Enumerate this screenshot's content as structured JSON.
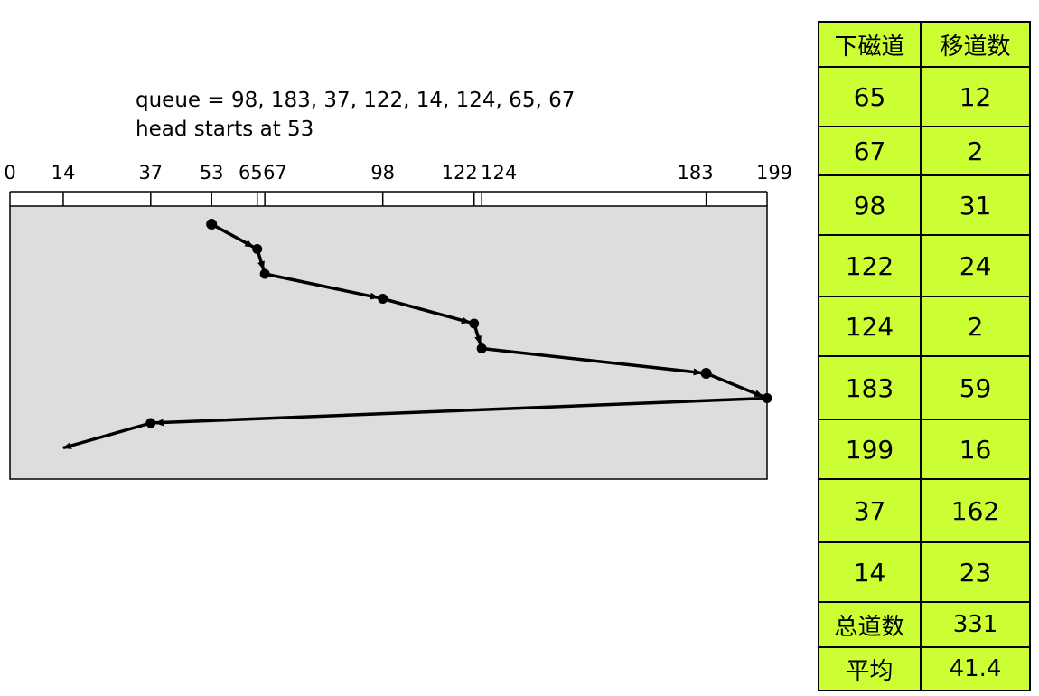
{
  "description": {
    "queue_line": "queue = 98, 183, 37, 122, 14, 124, 65, 67",
    "head_line": "head starts at 53"
  },
  "axis": {
    "min": 0,
    "max": 199,
    "ticks": [
      0,
      14,
      37,
      53,
      65,
      67,
      98,
      122,
      124,
      183,
      199
    ]
  },
  "path": {
    "sequence": [
      53,
      65,
      67,
      98,
      122,
      124,
      183,
      199,
      37,
      14
    ],
    "panel_color": "#dddddd"
  },
  "table": {
    "color": "#ccff33",
    "headers": [
      "下磁道",
      "移道数"
    ],
    "rows": [
      {
        "track": "65",
        "moves": "12"
      },
      {
        "track": "67",
        "moves": "2"
      },
      {
        "track": "98",
        "moves": "31"
      },
      {
        "track": "122",
        "moves": "24"
      },
      {
        "track": "124",
        "moves": "2"
      },
      {
        "track": "183",
        "moves": "59"
      },
      {
        "track": "199",
        "moves": "16"
      },
      {
        "track": "37",
        "moves": "162"
      },
      {
        "track": "14",
        "moves": "23"
      }
    ],
    "total": {
      "label": "总道数",
      "value": "331"
    },
    "average": {
      "label": "平均",
      "value": "41.4"
    }
  }
}
